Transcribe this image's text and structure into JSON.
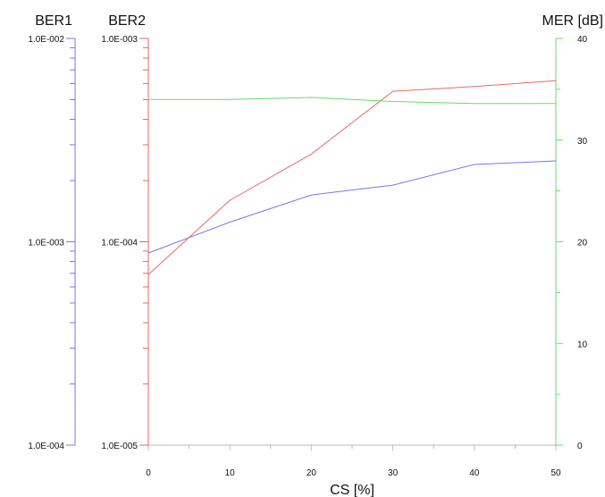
{
  "chart_data": {
    "type": "line",
    "x": [
      0,
      10,
      20,
      30,
      40,
      50
    ],
    "xlabel": "CS [%]",
    "xlim": [
      0,
      50
    ],
    "xticks": [
      "0",
      "10",
      "20",
      "30",
      "40",
      "50"
    ],
    "axes": {
      "ber1": {
        "label": "BER1",
        "scale": "log",
        "lim": [
          0.0001,
          0.01
        ],
        "ticks": [
          "1.0E-002",
          "1.0E-003",
          "1.0E-004"
        ],
        "color": "#7777ee"
      },
      "ber2": {
        "label": "BER2",
        "scale": "log",
        "lim": [
          1e-05,
          0.001
        ],
        "ticks": [
          "1.0E-003",
          "1.0E-004",
          "1.0E-005"
        ],
        "color": "#ee6666"
      },
      "mer": {
        "label": "MER [dB]",
        "scale": "linear",
        "lim": [
          0,
          40
        ],
        "ticks": [
          "40",
          "30",
          "20",
          "10",
          "0"
        ],
        "color": "#66dd66"
      }
    },
    "series": [
      {
        "axis": "ber1",
        "color": "#7777ee",
        "values": [
          0.00088,
          0.00125,
          0.0017,
          0.0019,
          0.0024,
          0.0025
        ]
      },
      {
        "axis": "ber2",
        "color": "#ee6666",
        "values": [
          6.9e-05,
          0.00016,
          0.00027,
          0.00055,
          0.00058,
          0.00062
        ]
      },
      {
        "axis": "mer",
        "color": "#66dd66",
        "values": [
          34.0,
          34.0,
          34.2,
          33.8,
          33.6,
          33.6
        ]
      }
    ]
  }
}
